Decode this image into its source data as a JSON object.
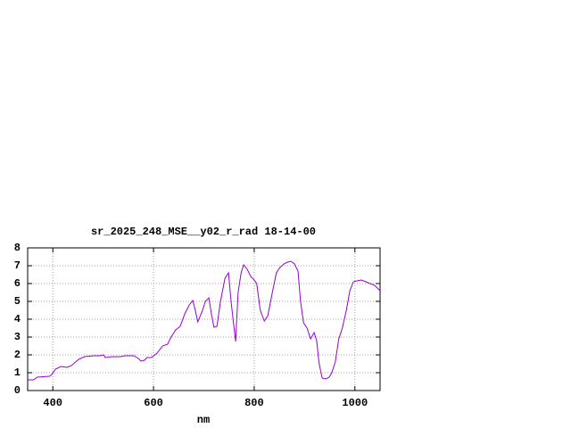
{
  "chart_data": {
    "type": "line",
    "title": "sr_2025_248_MSE__y02_r_rad 18-14-00",
    "x_label": "nm",
    "x": [
      350,
      362,
      369,
      393,
      398,
      405,
      416,
      428,
      437,
      451,
      463,
      481,
      494,
      501,
      504,
      517,
      534,
      543,
      561,
      570,
      575,
      582,
      587,
      596,
      607,
      618,
      628,
      635,
      644,
      653,
      662,
      671,
      678,
      683,
      688,
      696,
      703,
      710,
      715,
      720,
      726,
      733,
      742,
      749,
      754,
      763,
      768,
      774,
      779,
      786,
      793,
      800,
      805,
      812,
      820,
      827,
      836,
      844,
      851,
      859,
      866,
      873,
      880,
      887,
      892,
      898,
      905,
      912,
      919,
      924,
      929,
      935,
      942,
      949,
      954,
      961,
      968,
      975,
      983,
      990,
      997,
      1004,
      1013,
      1022,
      1030,
      1039,
      1050
    ],
    "series": [
      {
        "color": "#9400d3",
        "values": [
          0.6,
          0.6,
          0.75,
          0.8,
          0.9,
          1.2,
          1.35,
          1.3,
          1.4,
          1.75,
          1.9,
          1.95,
          1.95,
          2.0,
          1.85,
          1.9,
          1.9,
          1.95,
          1.95,
          1.8,
          1.65,
          1.7,
          1.85,
          1.85,
          2.1,
          2.5,
          2.6,
          3.0,
          3.4,
          3.6,
          4.3,
          4.8,
          5.05,
          4.5,
          3.85,
          4.4,
          5.0,
          5.2,
          4.3,
          3.55,
          3.6,
          5.0,
          6.3,
          6.6,
          5.0,
          2.75,
          5.5,
          6.6,
          7.05,
          6.8,
          6.4,
          6.2,
          6.0,
          4.5,
          3.9,
          4.2,
          5.5,
          6.6,
          6.9,
          7.1,
          7.2,
          7.25,
          7.1,
          6.7,
          5.0,
          3.8,
          3.5,
          2.9,
          3.25,
          2.8,
          1.5,
          0.7,
          0.65,
          0.75,
          1.0,
          1.6,
          2.9,
          3.5,
          4.5,
          5.6,
          6.1,
          6.15,
          6.2,
          6.1,
          6.0,
          5.9,
          5.6
        ]
      }
    ],
    "xlim": [
      350,
      1050
    ],
    "ylim": [
      0,
      8
    ],
    "xticks": [
      400,
      600,
      800,
      1000
    ],
    "yticks": [
      0,
      1,
      2,
      3,
      4,
      5,
      6,
      7,
      8
    ],
    "grid": true
  }
}
